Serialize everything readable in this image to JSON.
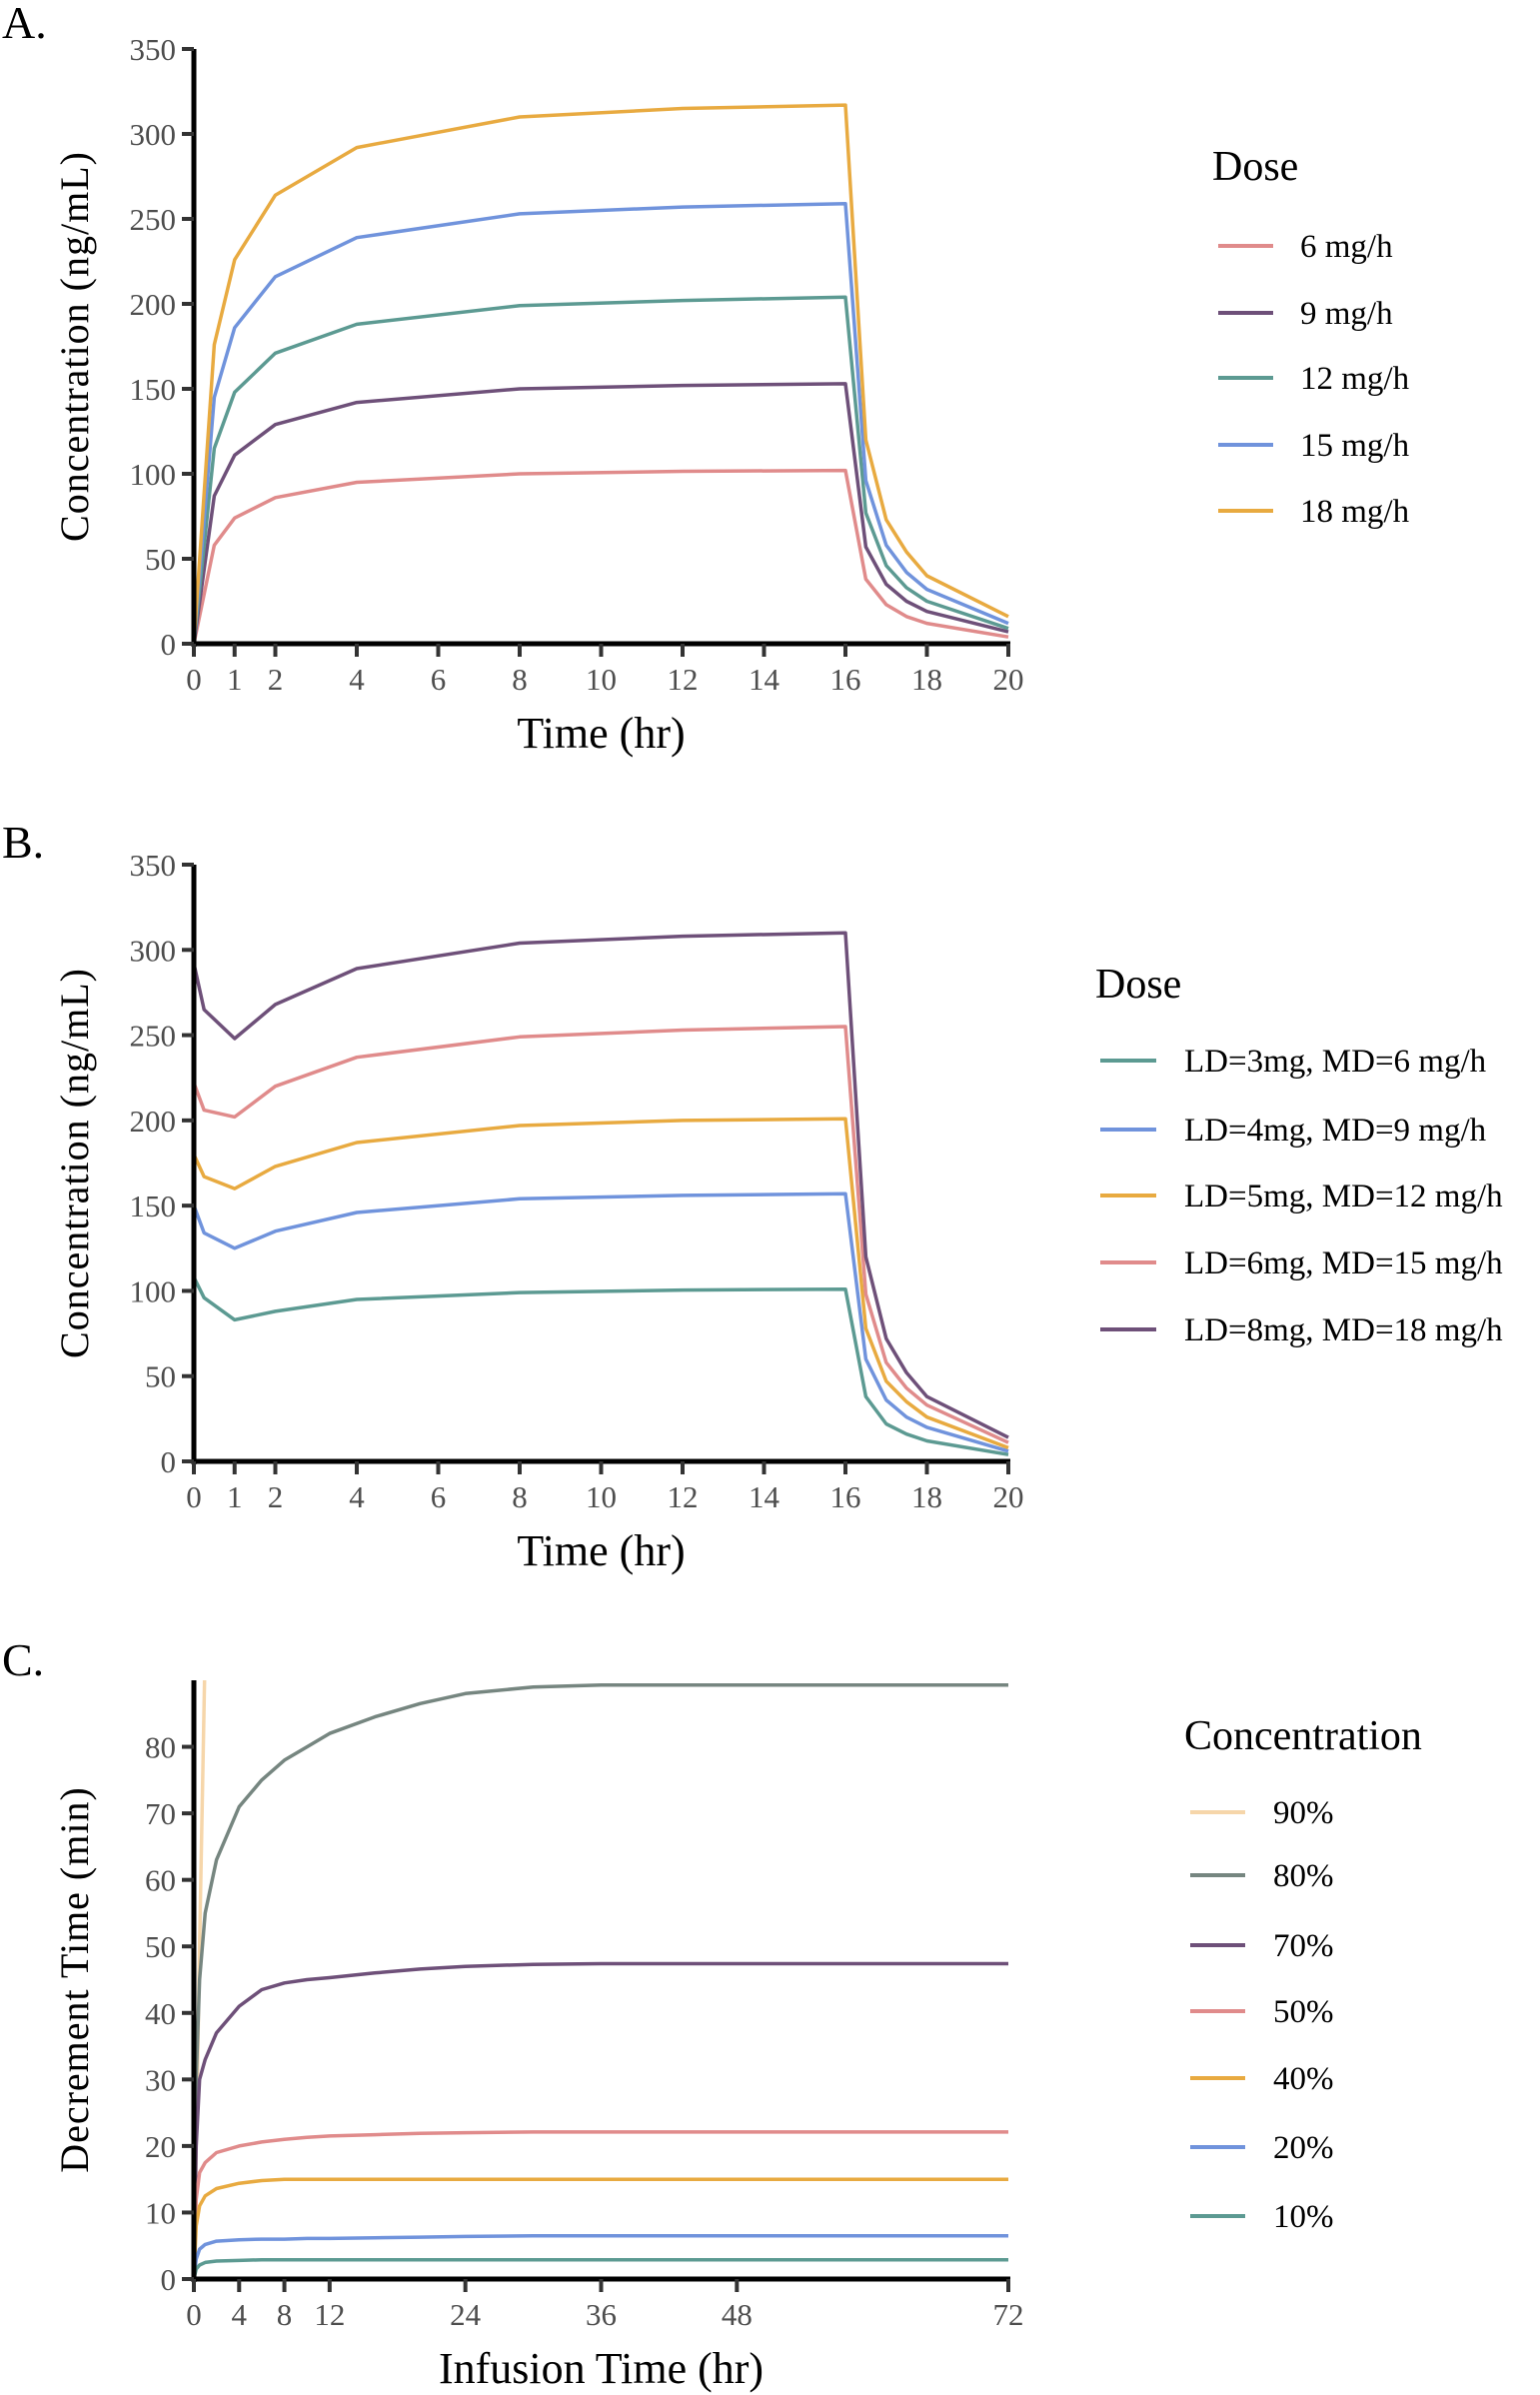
{
  "chart_data": [
    {
      "panel_label": "A.",
      "type": "line",
      "xlabel": "Time (hr)",
      "ylabel": "Concentration (ng/mL)",
      "xlim": [
        0,
        20
      ],
      "ylim": [
        0,
        350
      ],
      "xticks": [
        "0",
        "1",
        "2",
        "4",
        "6",
        "8",
        "10",
        "12",
        "14",
        "16",
        "18",
        "20"
      ],
      "xtick_values": [
        0,
        1,
        2,
        4,
        6,
        8,
        10,
        12,
        14,
        16,
        18,
        20
      ],
      "yticks": [
        "0",
        "50",
        "100",
        "150",
        "200",
        "250",
        "300",
        "350"
      ],
      "ytick_values": [
        0,
        50,
        100,
        150,
        200,
        250,
        300,
        350
      ],
      "legend_title": "Dose",
      "legend_placement": "right",
      "x": [
        0,
        0.5,
        1,
        2,
        4,
        8,
        12,
        16,
        16.5,
        17,
        17.5,
        18,
        20
      ],
      "series": [
        {
          "name": "6 mg/h",
          "color": "#e08b8b",
          "values": [
            0,
            58,
            74,
            86,
            95,
            100,
            101.5,
            102,
            38,
            23,
            16,
            12,
            4
          ]
        },
        {
          "name": "9 mg/h",
          "color": "#6e5079",
          "values": [
            0,
            87,
            111,
            129,
            142,
            150,
            152,
            153,
            57,
            35,
            25,
            19,
            7
          ]
        },
        {
          "name": "12 mg/h",
          "color": "#5c9a92",
          "values": [
            0,
            115,
            148,
            171,
            188,
            199,
            202,
            204,
            77,
            46,
            33,
            25,
            9
          ]
        },
        {
          "name": "15 mg/h",
          "color": "#7093dc",
          "values": [
            0,
            145,
            186,
            216,
            239,
            253,
            257,
            259,
            96,
            58,
            42,
            32,
            12
          ]
        },
        {
          "name": "18 mg/h",
          "color": "#e8aa40",
          "values": [
            0,
            176,
            226,
            264,
            292,
            310,
            315,
            317,
            120,
            73,
            54,
            40,
            16
          ]
        }
      ]
    },
    {
      "panel_label": "B.",
      "type": "line",
      "xlabel": "Time (hr)",
      "ylabel": "Concentration (ng/mL)",
      "xlim": [
        0,
        20
      ],
      "ylim": [
        0,
        350
      ],
      "xticks": [
        "0",
        "1",
        "2",
        "4",
        "6",
        "8",
        "10",
        "12",
        "14",
        "16",
        "18",
        "20"
      ],
      "xtick_values": [
        0,
        1,
        2,
        4,
        6,
        8,
        10,
        12,
        14,
        16,
        18,
        20
      ],
      "yticks": [
        "0",
        "50",
        "100",
        "150",
        "200",
        "250",
        "300",
        "350"
      ],
      "ytick_values": [
        0,
        50,
        100,
        150,
        200,
        250,
        300,
        350
      ],
      "legend_title": "Dose",
      "legend_placement": "right",
      "x": [
        0,
        0.25,
        1,
        2,
        4,
        8,
        12,
        16,
        16.5,
        17,
        17.5,
        18,
        20
      ],
      "series": [
        {
          "name": "LD=3mg, MD=6 mg/h",
          "color": "#5c9a92",
          "values": [
            108,
            96,
            83,
            88,
            95,
            99,
            100.5,
            101,
            38,
            22,
            16,
            12,
            4
          ]
        },
        {
          "name": "LD=4mg, MD=9 mg/h",
          "color": "#7093dc",
          "values": [
            150,
            134,
            125,
            135,
            146,
            154,
            156,
            157,
            60,
            36,
            26,
            20,
            6
          ]
        },
        {
          "name": "LD=5mg, MD=12 mg/h",
          "color": "#e8aa40",
          "values": [
            180,
            167,
            160,
            173,
            187,
            197,
            200,
            201,
            78,
            47,
            35,
            26,
            8
          ]
        },
        {
          "name": "LD=6mg, MD=15 mg/h",
          "color": "#e08b8b",
          "values": [
            222,
            206,
            202,
            220,
            237,
            249,
            253,
            255,
            98,
            58,
            43,
            33,
            11
          ]
        },
        {
          "name": "LD=8mg, MD=18 mg/h",
          "color": "#6e5079",
          "values": [
            292,
            265,
            248,
            268,
            289,
            304,
            308,
            310,
            120,
            72,
            52,
            38,
            14
          ]
        }
      ]
    },
    {
      "panel_label": "C.",
      "type": "line",
      "xlabel": "Infusion Time (hr)",
      "ylabel": "Decrement Time (min)",
      "xlim": [
        0,
        72
      ],
      "ylim": [
        0,
        90
      ],
      "xticks": [
        "0",
        "4",
        "8",
        "12",
        "24",
        "36",
        "48",
        "72"
      ],
      "xtick_values": [
        0,
        4,
        8,
        12,
        24,
        36,
        48,
        72
      ],
      "yticks": [
        "0",
        "10",
        "20",
        "30",
        "40",
        "50",
        "60",
        "70",
        "80"
      ],
      "ytick_values": [
        0,
        10,
        20,
        30,
        40,
        50,
        60,
        70,
        80
      ],
      "legend_title": "Concentration",
      "legend_placement": "right",
      "x": [
        0,
        0.2,
        0.5,
        1,
        2,
        4,
        6,
        8,
        10,
        12,
        16,
        20,
        24,
        30,
        36,
        72
      ],
      "series": [
        {
          "name": "90%",
          "color": "#f6d6aa",
          "values": [
            0,
            20,
            50,
            95,
            null,
            null,
            null,
            null,
            null,
            null,
            null,
            null,
            null,
            null,
            null,
            null
          ]
        },
        {
          "name": "80%",
          "color": "#768680",
          "values": [
            0,
            30,
            45,
            55,
            63,
            71,
            75,
            78,
            80,
            82,
            84.5,
            86.5,
            88,
            89,
            89.3,
            89.3
          ]
        },
        {
          "name": "70%",
          "color": "#6e5079",
          "values": [
            0,
            20,
            30,
            33,
            37,
            41,
            43.5,
            44.5,
            45,
            45.3,
            46,
            46.6,
            47,
            47.3,
            47.4,
            47.4
          ]
        },
        {
          "name": "50%",
          "color": "#e08b8b",
          "values": [
            0,
            12,
            16,
            17.5,
            19,
            20,
            20.6,
            21,
            21.3,
            21.5,
            21.7,
            21.9,
            22,
            22.1,
            22.1,
            22.1
          ]
        },
        {
          "name": "40%",
          "color": "#e8aa40",
          "values": [
            0,
            8,
            11,
            12.5,
            13.6,
            14.4,
            14.8,
            15,
            15,
            15,
            15,
            15,
            15,
            15,
            15,
            15
          ]
        },
        {
          "name": "20%",
          "color": "#7093dc",
          "values": [
            0,
            3,
            4.5,
            5.2,
            5.7,
            5.9,
            6,
            6,
            6.1,
            6.1,
            6.2,
            6.3,
            6.4,
            6.5,
            6.5,
            6.5
          ]
        },
        {
          "name": "10%",
          "color": "#5c9a92",
          "values": [
            0,
            1.5,
            2.1,
            2.5,
            2.7,
            2.8,
            2.9,
            2.9,
            2.9,
            2.9,
            2.9,
            2.9,
            2.9,
            2.9,
            2.9,
            2.9
          ]
        }
      ]
    }
  ]
}
